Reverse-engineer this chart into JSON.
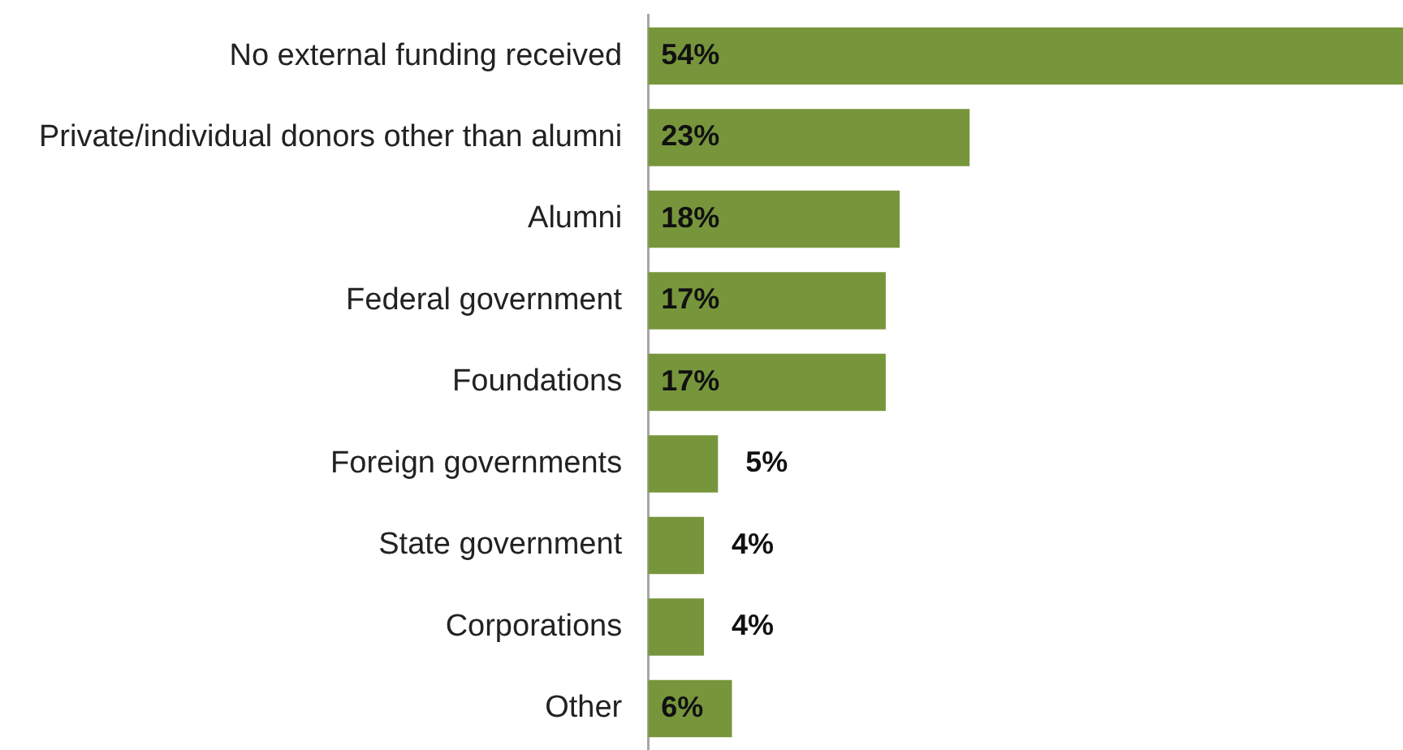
{
  "chart_data": {
    "type": "bar",
    "orientation": "horizontal",
    "categories": [
      "No external funding received",
      "Private/individual donors other than alumni",
      "Alumni",
      "Federal government",
      "Foundations",
      "Foreign governments",
      "State government",
      "Corporations",
      "Other"
    ],
    "values": [
      54,
      23,
      18,
      17,
      17,
      5,
      4,
      4,
      6
    ],
    "value_labels": [
      "54%",
      "23%",
      "18%",
      "17%",
      "17%",
      "5%",
      "4%",
      "4%",
      "6%"
    ],
    "color": "#77963c",
    "grid": false,
    "legend": false,
    "tick_labels": "y"
  }
}
